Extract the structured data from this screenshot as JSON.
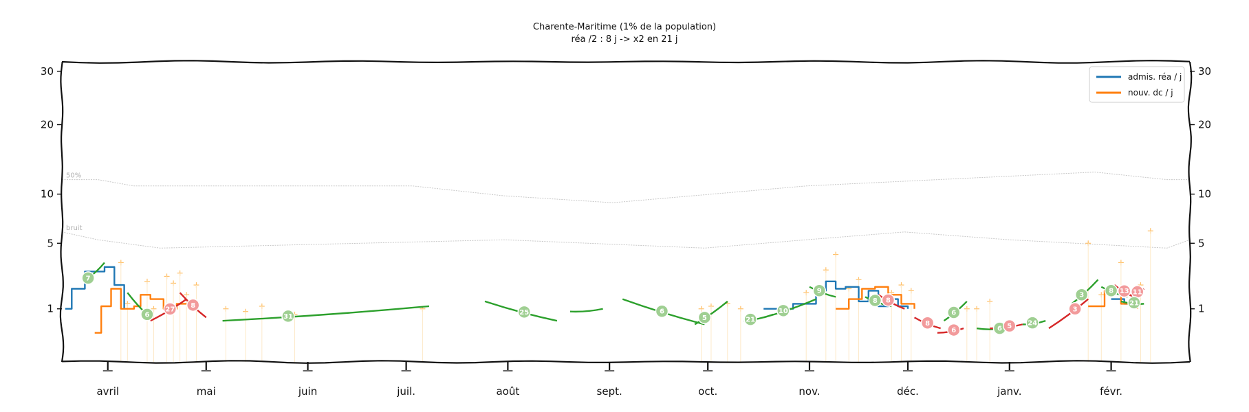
{
  "chart_data": {
    "type": "line",
    "title": "Charente-Maritime (1% de la population)",
    "subtitle": "réa /2 : 8 j -> x2 en 21 j",
    "xlabel": "",
    "ylabel": "",
    "y_scale": "sqrt",
    "ylim": [
      0,
      32
    ],
    "y_ticks": [
      1,
      5,
      10,
      20,
      30
    ],
    "y_tick_labels": [
      "1",
      "5",
      "10",
      "20",
      "30"
    ],
    "x_range": [
      "2020-03-18",
      "2021-02-25"
    ],
    "months": [
      {
        "date": "2020-04-01",
        "label": "avril"
      },
      {
        "date": "2020-05-01",
        "label": "mai"
      },
      {
        "date": "2020-06-01",
        "label": "juin"
      },
      {
        "date": "2020-07-01",
        "label": "juil."
      },
      {
        "date": "2020-08-01",
        "label": "août"
      },
      {
        "date": "2020-09-01",
        "label": "sept."
      },
      {
        "date": "2020-10-01",
        "label": "oct."
      },
      {
        "date": "2020-11-01",
        "label": "nov."
      },
      {
        "date": "2020-12-01",
        "label": "déc."
      },
      {
        "date": "2021-01-01",
        "label": "janv."
      },
      {
        "date": "2021-02-01",
        "label": "févr."
      }
    ],
    "grid": false,
    "legend": {
      "placement": "top-right"
    },
    "series": [
      {
        "name": "admis. réa / j",
        "color": "#1f77b4",
        "x": [
          "2020-03-19",
          "2020-03-21",
          "2020-03-23",
          "2020-03-25",
          "2020-03-28",
          "2020-03-31",
          "2020-04-03",
          "2020-04-06",
          "2020-10-18",
          "2020-10-22",
          "2020-10-27",
          "2020-10-31",
          "2020-11-03",
          "2020-11-06",
          "2020-11-09",
          "2020-11-12",
          "2020-11-16",
          "2020-11-19",
          "2020-11-22",
          "2020-11-25",
          "2020-11-28",
          "2020-12-01",
          "2021-02-01",
          "2021-02-05",
          "2021-02-09"
        ],
        "values": [
          1,
          1.9,
          1.9,
          2.9,
          2.9,
          3.2,
          2.1,
          1.0,
          1,
          1,
          1.2,
          1.2,
          1.8,
          2.3,
          1.9,
          2.0,
          1.3,
          1.8,
          1.1,
          1.4,
          1.1,
          1.0,
          1.4,
          1.2,
          1.1
        ]
      },
      {
        "name": "nouv. dc / j",
        "color": "#ff7f0e",
        "x": [
          "2020-03-28",
          "2020-03-30",
          "2020-04-02",
          "2020-04-05",
          "2020-04-09",
          "2020-04-11",
          "2020-04-14",
          "2020-04-18",
          "2020-04-22",
          "2020-04-27",
          "2020-11-09",
          "2020-11-13",
          "2020-11-17",
          "2020-11-21",
          "2020-11-25",
          "2020-11-29",
          "2020-12-03",
          "2021-01-25",
          "2021-01-30",
          "2021-02-04",
          "2021-02-09"
        ],
        "values": [
          0.3,
          1.1,
          1.9,
          1.0,
          1.1,
          1.6,
          1.4,
          1.0,
          1.2,
          1.0,
          1.0,
          1.4,
          1.9,
          2.0,
          1.6,
          1.2,
          1.0,
          1.1,
          1.8,
          1.2,
          1.0
        ]
      }
    ],
    "reference_lines": [
      {
        "label": "50%",
        "x": [
          "2020-03-18",
          "2020-03-29",
          "2020-04-09",
          "2020-07-03",
          "2020-07-31",
          "2020-09-02",
          "2020-10-31",
          "2021-01-27",
          "2021-02-18",
          "2021-02-25"
        ],
        "values": [
          11.8,
          11.8,
          11.0,
          11.0,
          9.8,
          9.0,
          11.0,
          12.8,
          11.8,
          11.8
        ]
      },
      {
        "label": "bruit",
        "x": [
          "2020-03-18",
          "2020-03-29",
          "2020-04-17",
          "2020-07-31",
          "2020-09-30",
          "2020-10-31",
          "2020-11-30",
          "2021-01-01",
          "2021-02-18",
          "2021-02-25"
        ],
        "values": [
          6.0,
          5.3,
          4.6,
          5.3,
          4.6,
          5.3,
          6.0,
          5.3,
          4.6,
          5.3
        ]
      }
    ],
    "segments": [
      {
        "color": "#2ca02c",
        "x": [
          "2020-03-26",
          "2020-03-31"
        ],
        "values": [
          2.5,
          3.5
        ],
        "badge": "7",
        "badge_at": "2020-03-26"
      },
      {
        "color": "#2ca02c",
        "x": [
          "2020-04-07",
          "2020-04-13"
        ],
        "values": [
          1.7,
          0.8
        ],
        "badge": "6",
        "badge_at": "2020-04-13"
      },
      {
        "color": "#d62728",
        "x": [
          "2020-04-14",
          "2020-04-25"
        ],
        "values": [
          0.6,
          1.4
        ],
        "badge": "27",
        "badge_at": "2020-04-20"
      },
      {
        "color": "#d62728",
        "x": [
          "2020-04-23",
          "2020-05-01"
        ],
        "values": [
          1.7,
          0.7
        ],
        "badge": "8",
        "badge_at": "2020-04-27"
      },
      {
        "color": "#2ca02c",
        "x": [
          "2020-05-06",
          "2020-07-08"
        ],
        "values": [
          0.6,
          1.1
        ],
        "badge": "31",
        "badge_at": "2020-05-26"
      },
      {
        "color": "#2ca02c",
        "x": [
          "2020-07-25",
          "2020-08-16"
        ],
        "values": [
          1.3,
          0.6
        ],
        "badge": "25",
        "badge_at": "2020-08-06"
      },
      {
        "color": "#2ca02c",
        "x": [
          "2020-08-20",
          "2020-08-30"
        ],
        "values": [
          0.9,
          1.0
        ]
      },
      {
        "color": "#2ca02c",
        "x": [
          "2020-09-05",
          "2020-09-30"
        ],
        "values": [
          1.4,
          0.5
        ],
        "badge": "6",
        "badge_at": "2020-09-17"
      },
      {
        "color": "#2ca02c",
        "x": [
          "2020-09-27",
          "2020-10-07"
        ],
        "values": [
          0.5,
          1.3
        ],
        "badge": "5",
        "badge_at": "2020-09-30"
      },
      {
        "color": "#2ca02c",
        "x": [
          "2020-10-12",
          "2020-10-21"
        ],
        "values": [
          0.6,
          0.8
        ],
        "badge": "21",
        "badge_at": "2020-10-14"
      },
      {
        "color": "#2ca02c",
        "x": [
          "2020-10-18",
          "2020-11-03"
        ],
        "values": [
          0.7,
          1.4
        ],
        "badge": "10",
        "badge_at": "2020-10-24"
      },
      {
        "color": "#2ca02c",
        "x": [
          "2020-11-01",
          "2020-11-09"
        ],
        "values": [
          2.0,
          1.5
        ],
        "badge": "9",
        "badge_at": "2020-11-04"
      },
      {
        "color": "#2ca02c",
        "x": [
          "2020-11-18",
          "2020-11-26"
        ],
        "values": [
          1.5,
          1.1
        ],
        "badge": "8",
        "badge_at": "2020-11-21"
      },
      {
        "color": "#d62728",
        "x": [
          "2020-11-22",
          "2020-11-30"
        ],
        "values": [
          1.6,
          1.0
        ],
        "badge": "8",
        "badge_at": "2020-11-25"
      },
      {
        "color": "#d62728",
        "x": [
          "2020-12-03",
          "2020-12-11"
        ],
        "values": [
          0.7,
          0.4
        ],
        "badge": "8",
        "badge_at": "2020-12-07"
      },
      {
        "color": "#2ca02c",
        "x": [
          "2020-12-12",
          "2020-12-19"
        ],
        "values": [
          0.6,
          1.3
        ],
        "badge": "6",
        "badge_at": "2020-12-15"
      },
      {
        "color": "#d62728",
        "x": [
          "2020-12-10",
          "2020-12-18"
        ],
        "values": [
          0.3,
          0.4
        ],
        "badge": "6",
        "badge_at": "2020-12-15"
      },
      {
        "color": "#2ca02c",
        "x": [
          "2020-12-22",
          "2020-12-30"
        ],
        "values": [
          0.4,
          0.4
        ],
        "badge": "6",
        "badge_at": "2020-12-29"
      },
      {
        "color": "#d62728",
        "x": [
          "2020-12-26",
          "2021-01-05"
        ],
        "values": [
          0.4,
          0.5
        ],
        "badge": "5",
        "badge_at": "2021-01-01"
      },
      {
        "color": "#2ca02c",
        "x": [
          "2021-01-05",
          "2021-01-12"
        ],
        "values": [
          0.5,
          0.6
        ],
        "badge": "24",
        "badge_at": "2021-01-08"
      },
      {
        "color": "#d62728",
        "x": [
          "2021-01-13",
          "2021-01-25"
        ],
        "values": [
          0.4,
          1.4
        ],
        "badge": "3",
        "badge_at": "2021-01-21"
      },
      {
        "color": "#2ca02c",
        "x": [
          "2021-01-20",
          "2021-01-28"
        ],
        "values": [
          1.2,
          2.4
        ],
        "badge": "3",
        "badge_at": "2021-01-23"
      },
      {
        "color": "#2ca02c",
        "x": [
          "2021-01-29",
          "2021-02-06"
        ],
        "values": [
          2.0,
          1.5
        ],
        "badge": "8",
        "badge_at": "2021-02-01"
      },
      {
        "color": "#d62728",
        "x": [
          "2021-02-02",
          "2021-02-08"
        ],
        "values": [
          2.1,
          1.5
        ],
        "badge": "13",
        "badge_at": "2021-02-05"
      },
      {
        "color": "#d62728",
        "x": [
          "2021-02-07",
          "2021-02-11"
        ],
        "values": [
          1.6,
          1.9
        ],
        "badge": "11",
        "badge_at": "2021-02-09"
      },
      {
        "color": "#2ca02c",
        "x": [
          "2021-02-04",
          "2021-02-11"
        ],
        "values": [
          1.3,
          1.2
        ],
        "badge": "21",
        "badge_at": "2021-02-08"
      }
    ],
    "raw_markers": {
      "color": "#ffc069",
      "x": [
        "2020-04-05",
        "2020-04-07",
        "2020-04-13",
        "2020-04-15",
        "2020-04-19",
        "2020-04-21",
        "2020-04-23",
        "2020-04-25",
        "2020-04-28",
        "2020-05-07",
        "2020-05-13",
        "2020-05-18",
        "2020-05-28",
        "2020-07-06",
        "2020-09-29",
        "2020-10-02",
        "2020-10-07",
        "2020-10-11",
        "2020-10-31",
        "2020-11-06",
        "2020-11-09",
        "2020-11-13",
        "2020-11-16",
        "2020-11-26",
        "2020-11-29",
        "2020-12-02",
        "2020-12-19",
        "2020-12-22",
        "2020-12-26",
        "2021-01-25",
        "2021-01-29",
        "2021-02-04",
        "2021-02-10",
        "2021-02-13"
      ],
      "values": [
        3.5,
        1.2,
        2.3,
        1.0,
        2.6,
        2.2,
        2.8,
        1.6,
        2.1,
        1.0,
        0.9,
        1.1,
        0.8,
        1.0,
        1.0,
        1.1,
        1.2,
        1.0,
        1.7,
        3.0,
        4.1,
        1.9,
        2.4,
        1.7,
        2.1,
        1.8,
        1.0,
        1.0,
        1.3,
        5.0,
        1.6,
        3.5,
        2.1,
        6.1
      ]
    }
  }
}
